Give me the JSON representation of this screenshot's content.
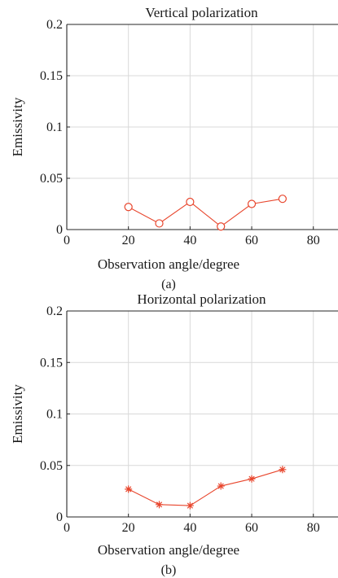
{
  "chart_data": [
    {
      "type": "line",
      "title": "Vertical polarization",
      "xlabel": "Observation angle/degree",
      "ylabel": "Emissivity",
      "caption": "(a)",
      "xlim": [
        0,
        88
      ],
      "ylim": [
        0,
        0.2
      ],
      "xticks": [
        "0",
        "20",
        "40",
        "60",
        "80"
      ],
      "xtick_values": [
        0,
        20,
        40,
        60,
        80
      ],
      "yticks": [
        "0",
        "0.05",
        "0.1",
        "0.15",
        "0.2"
      ],
      "ytick_values": [
        0,
        0.05,
        0.1,
        0.15,
        0.2
      ],
      "grid": true,
      "series": [
        {
          "marker": "circle",
          "color": "#e8452c",
          "x": [
            20,
            30,
            40,
            50,
            60,
            70
          ],
          "y": [
            0.022,
            0.006,
            0.027,
            0.003,
            0.025,
            0.03
          ]
        }
      ]
    },
    {
      "type": "line",
      "title": "Horizontal polarization",
      "xlabel": "Observation angle/degree",
      "ylabel": "Emissivity",
      "caption": "(b)",
      "xlim": [
        0,
        88
      ],
      "ylim": [
        0,
        0.2
      ],
      "xticks": [
        "0",
        "20",
        "40",
        "60",
        "80"
      ],
      "xtick_values": [
        0,
        20,
        40,
        60,
        80
      ],
      "yticks": [
        "0",
        "0.05",
        "0.1",
        "0.15",
        "0.2"
      ],
      "ytick_values": [
        0,
        0.05,
        0.1,
        0.15,
        0.2
      ],
      "grid": true,
      "series": [
        {
          "marker": "asterisk",
          "color": "#e8452c",
          "x": [
            20,
            30,
            40,
            50,
            60,
            70
          ],
          "y": [
            0.027,
            0.012,
            0.011,
            0.03,
            0.037,
            0.046
          ]
        }
      ]
    }
  ]
}
